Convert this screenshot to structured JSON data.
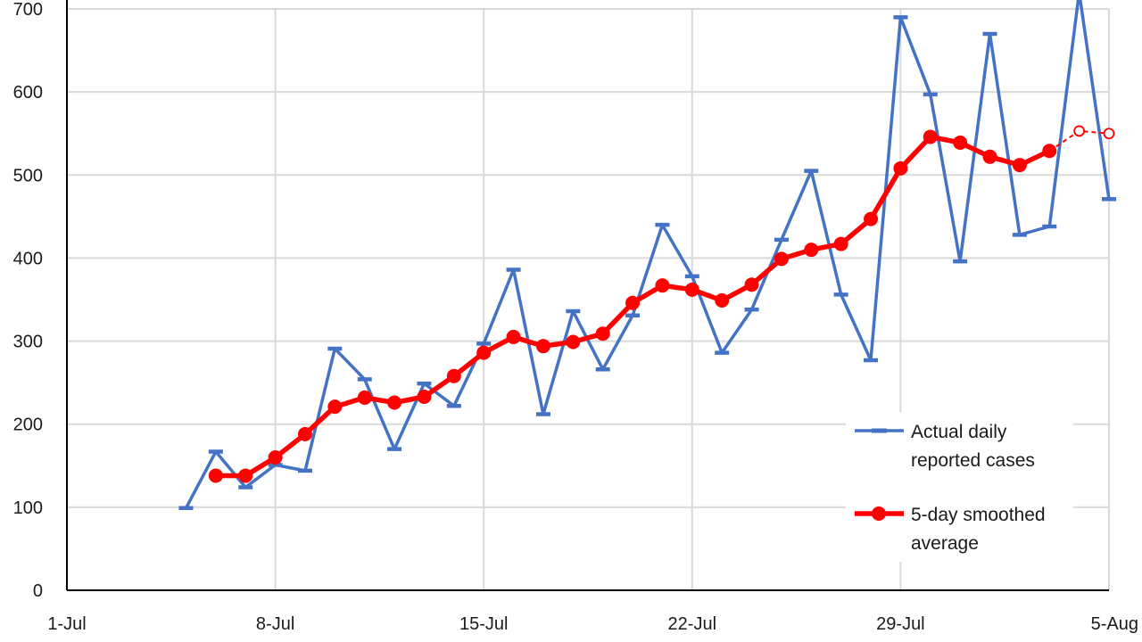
{
  "chart_data": {
    "type": "line",
    "title": "",
    "xlabel": "",
    "ylabel": "",
    "ylim": [
      0,
      700
    ],
    "yticks": [
      0,
      100,
      200,
      300,
      400,
      500,
      600,
      700
    ],
    "xticks": [
      "1-Jul",
      "8-Jul",
      "15-Jul",
      "22-Jul",
      "29-Jul",
      "5-Aug"
    ],
    "xlim_days": [
      "1-Jul",
      "5-Aug"
    ],
    "grid": true,
    "legend_position": "bottom-right",
    "series": [
      {
        "name": "Actual daily reported cases",
        "color": "#4472c4",
        "marker": "dash",
        "x": [
          "5-Jul",
          "6-Jul",
          "7-Jul",
          "8-Jul",
          "9-Jul",
          "10-Jul",
          "11-Jul",
          "12-Jul",
          "13-Jul",
          "14-Jul",
          "15-Jul",
          "16-Jul",
          "17-Jul",
          "18-Jul",
          "19-Jul",
          "20-Jul",
          "21-Jul",
          "22-Jul",
          "23-Jul",
          "24-Jul",
          "25-Jul",
          "26-Jul",
          "27-Jul",
          "28-Jul",
          "29-Jul",
          "30-Jul",
          "31-Jul",
          "1-Aug",
          "2-Aug",
          "3-Aug",
          "4-Aug",
          "5-Aug"
        ],
        "values": [
          99,
          167,
          124,
          151,
          144,
          291,
          254,
          170,
          249,
          222,
          297,
          386,
          212,
          336,
          266,
          331,
          440,
          378,
          286,
          338,
          422,
          505,
          356,
          277,
          690,
          597,
          396,
          670,
          428,
          438,
          720,
          471
        ]
      },
      {
        "name": "5-day smoothed average",
        "color": "#ff0000",
        "marker": "circle",
        "x": [
          "6-Jul",
          "7-Jul",
          "8-Jul",
          "9-Jul",
          "10-Jul",
          "11-Jul",
          "12-Jul",
          "13-Jul",
          "14-Jul",
          "15-Jul",
          "16-Jul",
          "17-Jul",
          "18-Jul",
          "19-Jul",
          "20-Jul",
          "21-Jul",
          "22-Jul",
          "23-Jul",
          "24-Jul",
          "25-Jul",
          "26-Jul",
          "27-Jul",
          "28-Jul",
          "29-Jul",
          "30-Jul",
          "31-Jul",
          "1-Aug",
          "2-Aug",
          "3-Aug"
        ],
        "values": [
          138,
          138,
          160,
          188,
          221,
          232,
          226,
          233,
          258,
          286,
          305,
          294,
          299,
          309,
          346,
          367,
          362,
          349,
          368,
          399,
          410,
          417,
          447,
          508,
          546,
          539,
          522,
          512,
          529
        ]
      },
      {
        "name": "",
        "color": "#ff0000",
        "marker": "open-circle",
        "dashed": true,
        "x": [
          "3-Aug",
          "4-Aug",
          "5-Aug"
        ],
        "values": [
          529,
          553,
          550
        ]
      }
    ]
  }
}
